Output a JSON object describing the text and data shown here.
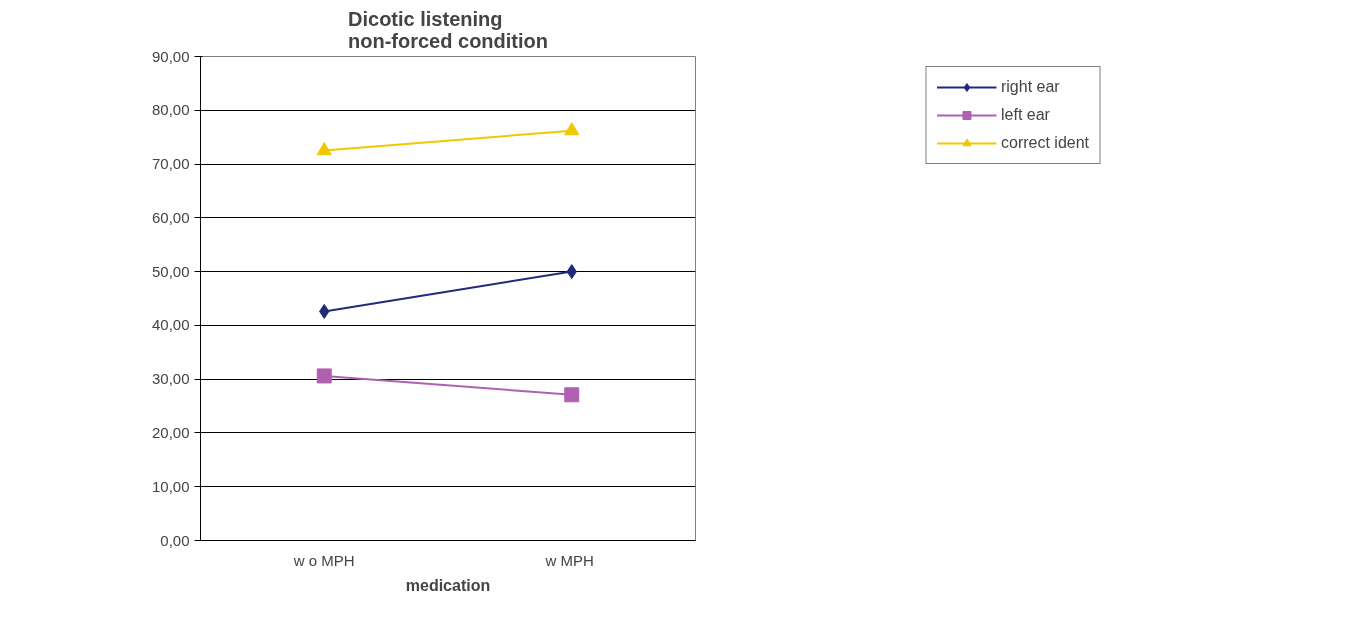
{
  "chart_data": {
    "type": "line",
    "title": "Dicotic listening\nnon-forced condition",
    "xlabel": "medication",
    "categories": [
      "w o MPH",
      "w  MPH"
    ],
    "series": [
      {
        "name": "right ear",
        "color": "#1f2a7a",
        "marker": "diamond",
        "values": [
          42.6,
          50.0
        ]
      },
      {
        "name": "left ear",
        "color": "#b060b0",
        "marker": "square",
        "values": [
          30.6,
          27.1
        ]
      },
      {
        "name": "correct ident",
        "color": "#f0c800",
        "marker": "triangle",
        "values": [
          72.5,
          76.2
        ]
      }
    ],
    "ylim": [
      0,
      90
    ],
    "yticks": [
      {
        "value": 0,
        "label": "0,00"
      },
      {
        "value": 10,
        "label": "10,00"
      },
      {
        "value": 20,
        "label": "20,00"
      },
      {
        "value": 30,
        "label": "30,00"
      },
      {
        "value": 40,
        "label": "40,00"
      },
      {
        "value": 50,
        "label": "50,00"
      },
      {
        "value": 60,
        "label": "60,00"
      },
      {
        "value": 70,
        "label": "70,00"
      },
      {
        "value": 80,
        "label": "80,00"
      },
      {
        "value": 90,
        "label": "90,00"
      }
    ],
    "grid": "y",
    "legend": "right"
  }
}
